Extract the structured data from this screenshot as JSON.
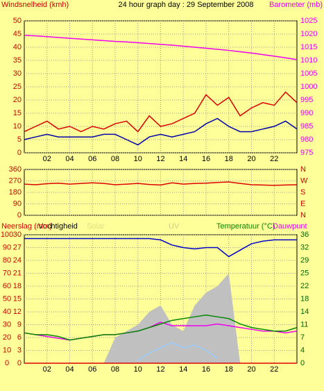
{
  "chart_data": [
    {
      "type": "line",
      "title": "24 hour graph day : 29 September 2008",
      "y_label": "Windsnelheid (kmh)",
      "y_color": "#cc0000",
      "y2_label": "Barometer (mb)",
      "y2_color": "#ee00ee",
      "x": [
        0,
        1,
        2,
        3,
        4,
        5,
        6,
        7,
        8,
        9,
        10,
        11,
        12,
        13,
        14,
        15,
        16,
        17,
        18,
        19,
        20,
        21,
        22,
        23,
        24
      ],
      "xlim": [
        0,
        24
      ],
      "xticks": [
        {
          "value": 2,
          "label": "02"
        },
        {
          "value": 4,
          "label": "04"
        },
        {
          "value": 6,
          "label": "06"
        },
        {
          "value": 8,
          "label": "08"
        },
        10,
        12,
        14,
        16,
        18,
        20,
        22
      ],
      "ylim": [
        0,
        50
      ],
      "yticks": [
        0,
        5,
        10,
        15,
        20,
        25,
        30,
        35,
        40,
        45,
        50
      ],
      "y2lim": [
        975,
        1025
      ],
      "y2ticks": [
        975,
        980,
        985,
        990,
        995,
        1000,
        1005,
        1010,
        1015,
        1020,
        1025
      ],
      "grid": true,
      "series": [
        {
          "color": "#ee00ee",
          "axis": "y2",
          "values": [
            1019.5,
            1019.3,
            1019,
            1018.7,
            1018.4,
            1018.1,
            1017.8,
            1017.5,
            1017.2,
            1017,
            1016.7,
            1016.4,
            1016.1,
            1015.8,
            1015.4,
            1015,
            1014.6,
            1014.2,
            1013.8,
            1013.3,
            1012.8,
            1012.2,
            1011.6,
            1011,
            1010.3
          ]
        },
        {
          "color": "#dd0000",
          "axis": "y",
          "values": [
            8,
            10,
            12,
            9,
            10,
            8,
            10,
            9,
            11,
            12,
            8,
            14,
            10,
            11,
            13,
            15,
            22,
            18,
            21,
            14,
            17,
            19,
            18,
            23,
            19
          ]
        },
        {
          "color": "#0000aa",
          "axis": "y",
          "values": [
            5,
            6,
            7,
            6,
            6,
            6,
            6,
            7,
            7,
            5,
            3,
            6,
            7,
            6,
            7,
            8,
            11,
            13,
            10,
            8,
            8,
            9,
            10,
            12,
            9
          ]
        }
      ]
    },
    {
      "type": "line",
      "y_color": "#cc0000",
      "y2_color": "#cc0000",
      "x": [
        0,
        1,
        2,
        3,
        4,
        5,
        6,
        7,
        8,
        9,
        10,
        11,
        12,
        13,
        14,
        15,
        16,
        17,
        18,
        19,
        20,
        21,
        22,
        23,
        24
      ],
      "xlim": [
        0,
        24
      ],
      "xticks": [
        {
          "value": 2,
          "label": "02"
        },
        {
          "value": 4,
          "label": "04"
        },
        {
          "value": 6,
          "label": "06"
        },
        {
          "value": 8,
          "label": "08"
        },
        10,
        12,
        14,
        16,
        18,
        20,
        22
      ],
      "ylim": [
        0,
        360
      ],
      "yticks": [
        0,
        90,
        180,
        270,
        360
      ],
      "y2lim": [
        0,
        360
      ],
      "y2ticks": [
        {
          "value": 0,
          "label": "N"
        },
        {
          "value": 90,
          "label": "E"
        },
        {
          "value": 180,
          "label": "S"
        },
        {
          "value": 270,
          "label": "W"
        },
        {
          "value": 360,
          "label": "N"
        }
      ],
      "grid": true,
      "series": [
        {
          "color": "#dd0000",
          "axis": "y",
          "values": [
            245,
            240,
            248,
            252,
            245,
            250,
            255,
            250,
            240,
            245,
            250,
            242,
            238,
            255,
            245,
            250,
            252,
            258,
            262,
            250,
            240,
            238,
            235,
            238,
            240
          ]
        }
      ]
    },
    {
      "type": "line",
      "y_color": "#cc0000",
      "y2_color": "#006600",
      "y3_color": "#cc0000",
      "x": [
        0,
        1,
        2,
        3,
        4,
        5,
        6,
        7,
        8,
        9,
        10,
        11,
        12,
        13,
        14,
        15,
        16,
        17,
        18,
        19,
        20,
        21,
        22,
        23,
        24
      ],
      "xlim": [
        0,
        24
      ],
      "xticks": [
        {
          "value": 2,
          "label": "02"
        },
        {
          "value": 4,
          "label": "04"
        },
        {
          "value": 6,
          "label": "06"
        },
        {
          "value": 8,
          "label": "08"
        },
        10,
        12,
        14,
        16,
        18,
        20,
        22
      ],
      "ylim": [
        0,
        100
      ],
      "yticks": [
        0,
        10,
        20,
        30,
        40,
        50,
        60,
        70,
        80,
        90,
        100
      ],
      "y3lim": [
        0,
        30
      ],
      "y3ticks": [
        0,
        3,
        6,
        9,
        12,
        15,
        18,
        21,
        24,
        27,
        30
      ],
      "y2lim": [
        0,
        36
      ],
      "y2ticks": [
        0,
        {
          "value": 3.6,
          "label": "4"
        },
        {
          "value": 7.2,
          "label": "7"
        },
        {
          "value": 10.8,
          "label": "11"
        },
        {
          "value": 14.4,
          "label": "14"
        },
        18,
        {
          "value": 21.6,
          "label": "22"
        },
        {
          "value": 25.2,
          "label": "25"
        },
        {
          "value": 28.8,
          "label": "29"
        },
        {
          "value": 32.4,
          "label": "32"
        },
        36
      ],
      "grid": true,
      "series": [
        {
          "name": "Solar",
          "color": "#c0c0c0",
          "style": "area",
          "axis": "y",
          "values": [
            0,
            0,
            0,
            0,
            0,
            0,
            0,
            0,
            20,
            25,
            30,
            40,
            45,
            30,
            25,
            45,
            55,
            60,
            70,
            0,
            0,
            0,
            0,
            0,
            0
          ]
        },
        {
          "name": "UV",
          "color": "#99ccff",
          "axis": "y",
          "values": [
            null,
            null,
            null,
            null,
            null,
            null,
            null,
            null,
            null,
            null,
            2,
            8,
            12,
            16,
            12,
            14,
            10,
            4,
            null,
            null,
            null,
            null,
            null,
            null,
            null
          ]
        },
        {
          "name": "Vochtigheid",
          "color": "#0000cc",
          "axis": "y",
          "values": [
            97,
            97,
            97,
            97,
            97,
            97,
            97,
            97,
            97,
            97,
            97,
            97,
            96,
            92,
            90,
            89,
            90,
            90,
            83,
            88,
            93,
            95,
            96,
            96,
            96
          ]
        },
        {
          "name": "Dauwpunt",
          "color": "#ee00ee",
          "axis": "y2",
          "values": [
            8.5,
            8,
            7.5,
            7,
            6.5,
            7,
            7.5,
            8,
            8,
            8.5,
            9,
            10,
            11.5,
            10.5,
            10.5,
            10.5,
            10.5,
            11,
            10.5,
            10,
            9.5,
            9,
            9,
            8.5,
            9
          ]
        },
        {
          "name": "Temperatuur (°C)",
          "color": "#008800",
          "axis": "y2",
          "values": [
            8.5,
            8,
            8,
            7.5,
            6.5,
            7,
            7.5,
            8,
            8,
            8.5,
            9,
            10,
            11,
            12,
            12.5,
            13,
            13.5,
            13,
            12.5,
            11,
            10,
            9.5,
            9,
            9,
            10
          ]
        },
        {
          "name": "Neerslag (mm)",
          "color": "#dd0000",
          "axis": "y3",
          "values": [
            0,
            0,
            0,
            0,
            0,
            0,
            0,
            0,
            0,
            0,
            0,
            0,
            0,
            0,
            0,
            0,
            0,
            0,
            0,
            0,
            0,
            0,
            0,
            0,
            0
          ]
        }
      ]
    }
  ]
}
